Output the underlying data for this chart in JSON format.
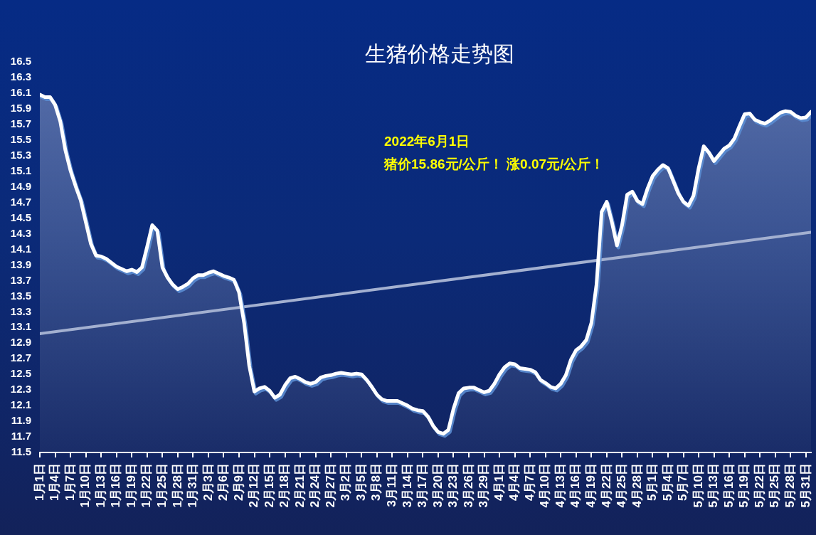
{
  "chart_data": {
    "type": "area",
    "title": "生猪价格走势图",
    "annotations": [
      "2022年6月1日",
      "猪价15.86元/公斤！ 涨0.07元/公斤！"
    ],
    "x": [
      "--01-01",
      "--01-02",
      "--01-03",
      "--01-04",
      "--01-05",
      "--01-06",
      "--01-07",
      "--01-08",
      "--01-09",
      "--01-10",
      "--01-11",
      "--01-12",
      "--01-13",
      "--01-14",
      "--01-15",
      "--01-16",
      "--01-17",
      "--01-18",
      "--01-19",
      "--01-20",
      "--01-21",
      "--01-22",
      "--01-23",
      "--01-24",
      "--01-25",
      "--01-26",
      "--01-27",
      "--01-28",
      "--01-29",
      "--01-30",
      "--01-31",
      "--02-01",
      "--02-02",
      "--02-03",
      "--02-04",
      "--02-05",
      "--02-06",
      "--02-07",
      "--02-08",
      "--02-09",
      "--02-10",
      "--02-11",
      "--02-12",
      "--02-13",
      "--02-14",
      "--02-15",
      "--02-16",
      "--02-17",
      "--02-18",
      "--02-19",
      "--02-20",
      "--02-21",
      "--02-22",
      "--02-23",
      "--02-24",
      "--02-25",
      "--02-26",
      "--02-27",
      "--02-28",
      "--03-01",
      "--03-02",
      "--03-03",
      "--03-04",
      "--03-05",
      "--03-06",
      "--03-07",
      "--03-08",
      "--03-09",
      "--03-10",
      "--03-11",
      "--03-12",
      "--03-13",
      "--03-14",
      "--03-15",
      "--03-16",
      "--03-17",
      "--03-18",
      "--03-19",
      "--03-20",
      "--03-21",
      "--03-22",
      "--03-23",
      "--03-24",
      "--03-25",
      "--03-26",
      "--03-27",
      "--03-28",
      "--03-29",
      "--03-30",
      "--03-31",
      "--04-01",
      "--04-02",
      "--04-03",
      "--04-04",
      "--04-05",
      "--04-06",
      "--04-07",
      "--04-08",
      "--04-09",
      "--04-10",
      "--04-11",
      "--04-12",
      "--04-13",
      "--04-14",
      "--04-15",
      "--04-16",
      "--04-17",
      "--04-18",
      "--04-19",
      "--04-20",
      "--04-21",
      "--04-22",
      "--04-23",
      "--04-24",
      "--04-25",
      "--04-26",
      "--04-27",
      "--04-28",
      "--04-29",
      "--04-30",
      "--05-01",
      "--05-02",
      "--05-03",
      "--05-04",
      "--05-05",
      "--05-06",
      "--05-07",
      "--05-08",
      "--05-09",
      "--05-10",
      "--05-11",
      "--05-12",
      "--05-13",
      "--05-14",
      "--05-15",
      "--05-16",
      "--05-17",
      "--05-18",
      "--05-19",
      "--05-20",
      "--05-21",
      "--05-22",
      "--05-23",
      "--05-24",
      "--05-25",
      "--05-26",
      "--05-27",
      "--05-28",
      "--05-29",
      "--05-30",
      "--05-31",
      "--06-01"
    ],
    "xlim": [
      "--01-01",
      "--06-01"
    ],
    "xticks": [
      {
        "value": "--01-01",
        "label": "1月1日"
      },
      {
        "value": "--01-04",
        "label": "1月4日"
      },
      {
        "value": "--01-07",
        "label": "1月7日"
      },
      {
        "value": "--01-10",
        "label": "1月10日"
      },
      {
        "value": "--01-13",
        "label": "1月13日"
      },
      {
        "value": "--01-16",
        "label": "1月16日"
      },
      {
        "value": "--01-19",
        "label": "1月19日"
      },
      {
        "value": "--01-22",
        "label": "1月22日"
      },
      {
        "value": "--01-25",
        "label": "1月25日"
      },
      {
        "value": "--01-28",
        "label": "1月28日"
      },
      {
        "value": "--01-31",
        "label": "1月31日"
      },
      {
        "value": "--02-03",
        "label": "2月3日"
      },
      {
        "value": "--02-06",
        "label": "2月6日"
      },
      {
        "value": "--02-09",
        "label": "2月9日"
      },
      {
        "value": "--02-12",
        "label": "2月12日"
      },
      {
        "value": "--02-15",
        "label": "2月15日"
      },
      {
        "value": "--02-18",
        "label": "2月18日"
      },
      {
        "value": "--02-21",
        "label": "2月21日"
      },
      {
        "value": "--02-24",
        "label": "2月24日"
      },
      {
        "value": "--02-27",
        "label": "2月27日"
      },
      {
        "value": "--03-02",
        "label": "3月2日"
      },
      {
        "value": "--03-05",
        "label": "3月5日"
      },
      {
        "value": "--03-08",
        "label": "3月8日"
      },
      {
        "value": "--03-11",
        "label": "3月11日"
      },
      {
        "value": "--03-14",
        "label": "3月14日"
      },
      {
        "value": "--03-17",
        "label": "3月17日"
      },
      {
        "value": "--03-20",
        "label": "3月20日"
      },
      {
        "value": "--03-23",
        "label": "3月23日"
      },
      {
        "value": "--03-26",
        "label": "3月26日"
      },
      {
        "value": "--03-29",
        "label": "3月29日"
      },
      {
        "value": "--04-01",
        "label": "4月1日"
      },
      {
        "value": "--04-04",
        "label": "4月4日"
      },
      {
        "value": "--04-07",
        "label": "4月7日"
      },
      {
        "value": "--04-10",
        "label": "4月10日"
      },
      {
        "value": "--04-13",
        "label": "4月13日"
      },
      {
        "value": "--04-16",
        "label": "4月16日"
      },
      {
        "value": "--04-19",
        "label": "4月19日"
      },
      {
        "value": "--04-22",
        "label": "4月22日"
      },
      {
        "value": "--04-25",
        "label": "4月25日"
      },
      {
        "value": "--04-28",
        "label": "4月28日"
      },
      {
        "value": "--05-01",
        "label": "5月1日"
      },
      {
        "value": "--05-04",
        "label": "5月4日"
      },
      {
        "value": "--05-07",
        "label": "5月7日"
      },
      {
        "value": "--05-10",
        "label": "5月10日"
      },
      {
        "value": "--05-13",
        "label": "5月13日"
      },
      {
        "value": "--05-16",
        "label": "5月16日"
      },
      {
        "value": "--05-19",
        "label": "5月19日"
      },
      {
        "value": "--05-22",
        "label": "5月22日"
      },
      {
        "value": "--05-25",
        "label": "5月25日"
      },
      {
        "value": "--05-28",
        "label": "5月28日"
      },
      {
        "value": "--05-31",
        "label": "5月31日"
      }
    ],
    "ylim": [
      11.5,
      16.5
    ],
    "yticks": [
      11.5,
      11.7,
      11.9,
      12.1,
      12.3,
      12.5,
      12.7,
      12.9,
      13.1,
      13.3,
      13.5,
      13.7,
      13.9,
      14.1,
      14.3,
      14.5,
      14.7,
      14.9,
      15.1,
      15.3,
      15.5,
      15.7,
      15.9,
      16.1,
      16.3,
      16.5
    ],
    "series": [
      {
        "color": "#ffffff",
        "values": [
          16.08,
          16.05,
          16.05,
          15.95,
          15.74,
          15.37,
          15.11,
          14.91,
          14.73,
          14.45,
          14.17,
          14.02,
          14.01,
          13.98,
          13.93,
          13.88,
          13.85,
          13.82,
          13.84,
          13.81,
          13.87,
          14.13,
          14.41,
          14.34,
          13.87,
          13.74,
          13.65,
          13.59,
          13.62,
          13.66,
          13.73,
          13.77,
          13.77,
          13.8,
          13.82,
          13.79,
          13.76,
          13.74,
          13.71,
          13.55,
          13.16,
          12.61,
          12.28,
          12.32,
          12.34,
          12.29,
          12.2,
          12.24,
          12.36,
          12.45,
          12.47,
          12.44,
          12.4,
          12.38,
          12.4,
          12.46,
          12.48,
          12.49,
          12.51,
          12.52,
          12.51,
          12.5,
          12.51,
          12.5,
          12.43,
          12.34,
          12.24,
          12.18,
          12.16,
          12.16,
          12.16,
          12.13,
          12.1,
          12.06,
          12.04,
          12.03,
          11.96,
          11.84,
          11.76,
          11.74,
          11.79,
          12.06,
          12.26,
          12.32,
          12.33,
          12.33,
          12.3,
          12.27,
          12.29,
          12.38,
          12.5,
          12.59,
          12.64,
          12.63,
          12.58,
          12.57,
          12.56,
          12.53,
          12.43,
          12.39,
          12.34,
          12.32,
          12.38,
          12.49,
          12.69,
          12.81,
          12.86,
          12.94,
          13.16,
          13.65,
          14.58,
          14.71,
          14.45,
          14.15,
          14.41,
          14.8,
          14.84,
          14.72,
          14.68,
          14.88,
          15.04,
          15.12,
          15.18,
          15.14,
          14.98,
          14.82,
          14.71,
          14.66,
          14.79,
          15.14,
          15.42,
          15.34,
          15.23,
          15.31,
          15.39,
          15.43,
          15.52,
          15.68,
          15.83,
          15.84,
          15.76,
          15.73,
          15.71,
          15.75,
          15.8,
          15.85,
          15.87,
          15.86,
          15.81,
          15.78,
          15.79,
          15.86
        ]
      },
      {
        "type": "line",
        "color": "#a3b0d0",
        "x": [
          "--01-01",
          "--06-01"
        ],
        "values": [
          13.02,
          14.32
        ]
      }
    ]
  }
}
